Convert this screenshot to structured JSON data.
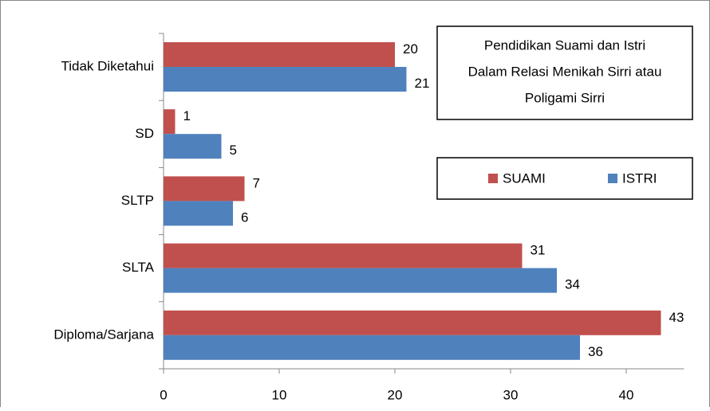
{
  "chart_data": {
    "type": "bar",
    "orientation": "horizontal",
    "title": [
      "Pendidikan Suami dan Istri",
      "Dalam Relasi Menikah Sirri atau",
      "Poligami Sirri"
    ],
    "categories": [
      "Tidak Diketahui",
      "SD",
      "SLTP",
      "SLTA",
      "Diploma/Sarjana"
    ],
    "series": [
      {
        "name": "SUAMI",
        "color": "#c0504d",
        "values": [
          20,
          1,
          7,
          31,
          43
        ]
      },
      {
        "name": "ISTRI",
        "color": "#4f81bd",
        "values": [
          21,
          5,
          6,
          34,
          36
        ]
      }
    ],
    "xlim": [
      0,
      45
    ],
    "xticks": [
      0,
      10,
      20,
      30,
      40
    ],
    "grid": false
  }
}
